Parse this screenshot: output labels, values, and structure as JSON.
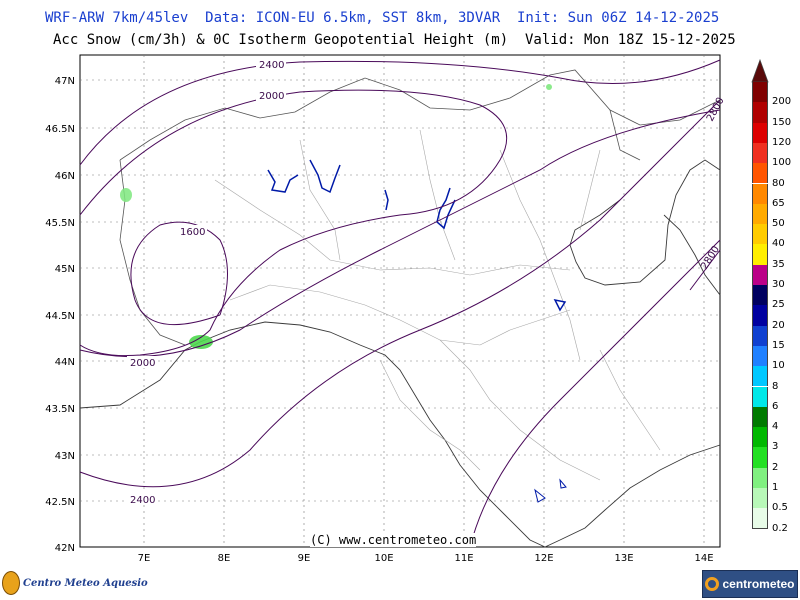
{
  "header": {
    "line1": "WRF-ARW 7km/45lev  Data: ICON-EU 6.5km, SST 8km, 3DVAR  Init: Sun 06Z 14-12-2025",
    "line2": "Acc Snow (cm/3h) & 0C Isotherm Geopotential Height (m)  Valid: Mon 18Z 15-12-2025"
  },
  "axes": {
    "lat_labels": [
      "47N",
      "46.5N",
      "46N",
      "45.5N",
      "45N",
      "44.5N",
      "44N",
      "43.5N",
      "43N",
      "42.5N",
      "42N"
    ],
    "lon_labels": [
      "7E",
      "8E",
      "9E",
      "10E",
      "11E",
      "12E",
      "13E",
      "14E"
    ]
  },
  "contours": {
    "labels": [
      "2400",
      "2000",
      "1600",
      "2000",
      "2400",
      "2800",
      "2800"
    ]
  },
  "legend": {
    "colors": [
      "#5a0a0a",
      "#800000",
      "#b00000",
      "#dd0000",
      "#f03020",
      "#ff5500",
      "#ff8800",
      "#ffaa00",
      "#ffcc00",
      "#ffee00",
      "#bb0088",
      "#000060",
      "#0000a0",
      "#1040d0",
      "#2080ff",
      "#00c8ff",
      "#00e8e8",
      "#007a00",
      "#00b800",
      "#22e022",
      "#80f080",
      "#b8f8b8",
      "#e8fce8"
    ],
    "labels": [
      "200",
      "150",
      "120",
      "100",
      "80",
      "65",
      "50",
      "40",
      "35",
      "30",
      "25",
      "20",
      "15",
      "10",
      "8",
      "6",
      "4",
      "3",
      "2",
      "1",
      "0.5",
      "0.2"
    ]
  },
  "footer": {
    "copyright": "(C) www.centrometeo.com",
    "logo_left": "Centro Meteo Aquesio",
    "logo_right": "centrometeo"
  }
}
